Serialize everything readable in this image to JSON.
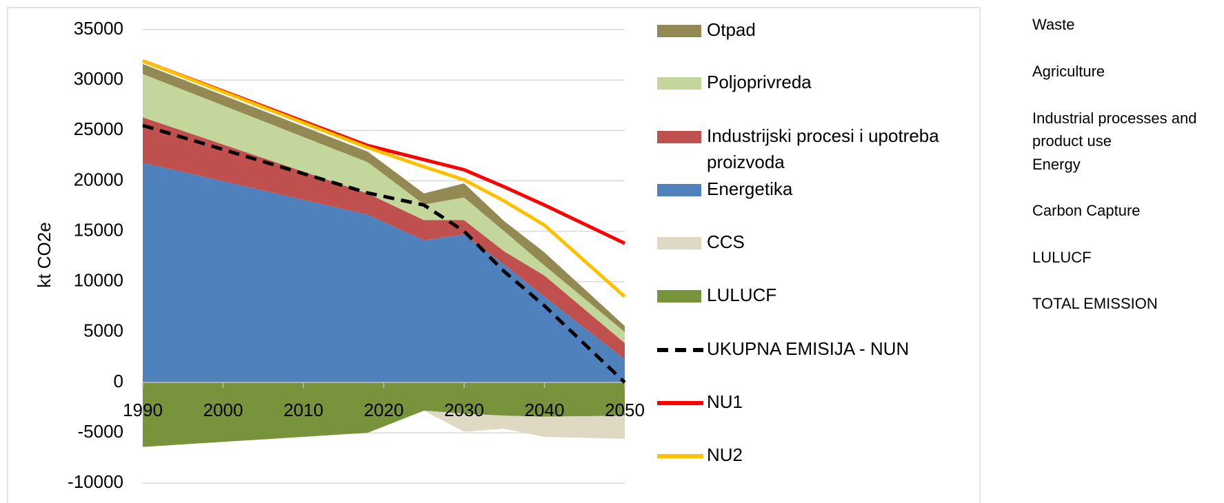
{
  "chart_data": {
    "type": "area",
    "y_label": "kt CO2e",
    "x": [
      1990,
      2018,
      2025,
      2030,
      2035,
      2040,
      2050
    ],
    "xlim": [
      1990,
      2050
    ],
    "xticks": [
      1990,
      2000,
      2010,
      2020,
      2030,
      2040,
      2050
    ],
    "ylim": [
      -10000,
      35000
    ],
    "yticks": [
      -10000,
      -5000,
      0,
      5000,
      10000,
      15000,
      20000,
      25000,
      30000,
      35000
    ],
    "grid": true,
    "series": [
      {
        "name": "Otpad",
        "color": "#938953",
        "kind": "area",
        "stack": "positive",
        "values": [
          1000,
          1050,
          1100,
          1400,
          1000,
          1300,
          600
        ]
      },
      {
        "name": "Poljoprivreda",
        "color": "#c3d69b",
        "kind": "area",
        "stack": "positive",
        "values": [
          4300,
          3100,
          1550,
          2250,
          2000,
          1000,
          1100
        ]
      },
      {
        "name": "Industrijski procesi i upotreba proizvoda",
        "color": "#c0504d",
        "kind": "area",
        "stack": "positive",
        "values": [
          4500,
          2100,
          2000,
          1400,
          1300,
          2100,
          1600
        ]
      },
      {
        "name": "Energetika",
        "color": "#4f81bd",
        "kind": "area",
        "stack": "positive",
        "values": [
          21800,
          16650,
          14100,
          14700,
          11700,
          8500,
          2300
        ]
      },
      {
        "name": "CCS",
        "color": "#ddd9c3",
        "kind": "area",
        "stack": "negative",
        "values": [
          0,
          0,
          0,
          -1800,
          -1300,
          -2000,
          -2300
        ]
      },
      {
        "name": "LULUCF",
        "color": "#77933c",
        "kind": "area",
        "stack": "negative",
        "values": [
          -6400,
          -5000,
          -2800,
          -3100,
          -3300,
          -3400,
          -3300
        ]
      },
      {
        "name": "UKUPNA EMISIJA - NUN",
        "color": "#000000",
        "kind": "line",
        "dashed": true,
        "values": [
          25500,
          18800,
          17600,
          15000,
          11000,
          7600,
          0
        ]
      },
      {
        "name": "NU1",
        "color": "#ff0000",
        "kind": "line",
        "dashed": false,
        "values": [
          31900,
          23500,
          22100,
          21100,
          19400,
          17600,
          13800
        ]
      },
      {
        "name": "NU2",
        "color": "#ffc000",
        "kind": "line",
        "dashed": false,
        "values": [
          31900,
          23300,
          21400,
          20100,
          18000,
          15600,
          8500
        ]
      }
    ],
    "annotations": [
      "Waste",
      "Agriculture",
      "Industrial processes and product use",
      "Energy",
      "Carbon Capture",
      "LULUCF",
      "TOTAL EMISSION"
    ]
  }
}
